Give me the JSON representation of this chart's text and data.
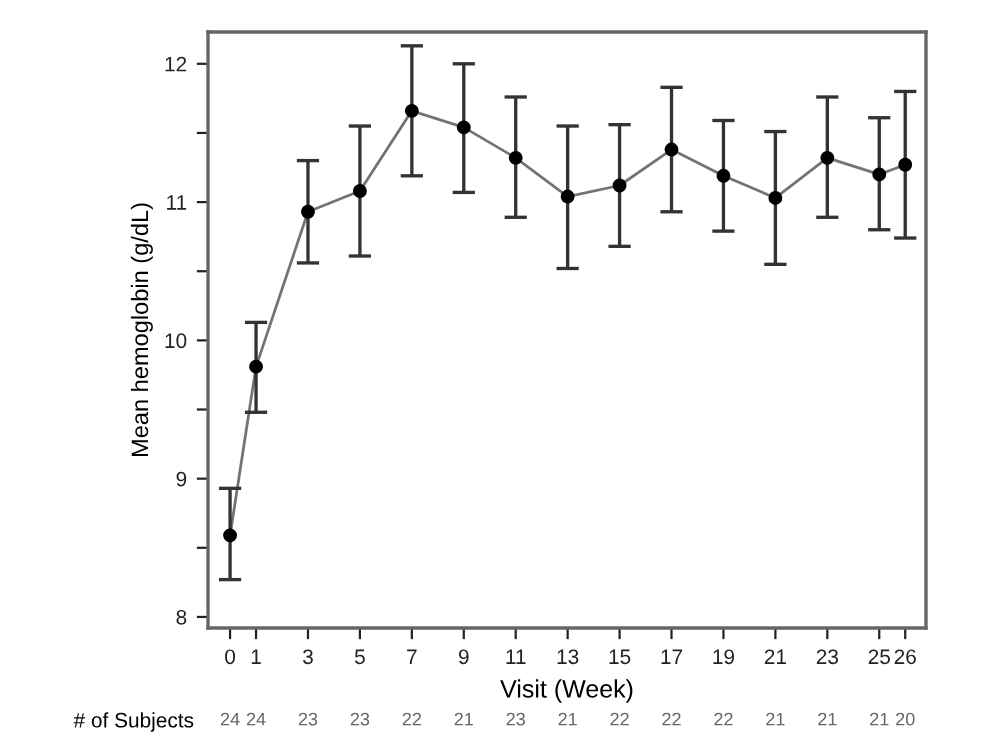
{
  "chart_data": {
    "type": "line",
    "xlabel": "Visit (Week)",
    "ylabel": "Mean hemoglobin (g/dL)",
    "x": [
      0,
      1,
      3,
      5,
      7,
      9,
      11,
      13,
      15,
      17,
      19,
      21,
      23,
      25,
      26
    ],
    "series": [
      {
        "color": "#000000",
        "values": [
          8.59,
          9.81,
          10.93,
          11.08,
          11.66,
          11.54,
          11.32,
          11.04,
          11.12,
          11.38,
          11.19,
          11.03,
          11.32,
          11.2,
          11.27
        ],
        "errors": [
          [
            8.27,
            8.93
          ],
          [
            9.48,
            10.13
          ],
          [
            10.56,
            11.3
          ],
          [
            10.61,
            11.55
          ],
          [
            11.19,
            12.13
          ],
          [
            11.07,
            12.0
          ],
          [
            10.89,
            11.76
          ],
          [
            10.52,
            11.55
          ],
          [
            10.68,
            11.56
          ],
          [
            10.93,
            11.83
          ],
          [
            10.79,
            11.59
          ],
          [
            10.55,
            11.51
          ],
          [
            10.89,
            11.76
          ],
          [
            10.8,
            11.61
          ],
          [
            10.74,
            11.8
          ]
        ]
      }
    ],
    "xlim": [
      -0.85,
      26.8
    ],
    "xticks": [
      0,
      1,
      3,
      5,
      7,
      9,
      11,
      13,
      15,
      17,
      19,
      21,
      23,
      25,
      26
    ],
    "ylim": [
      7.92,
      12.23
    ],
    "yticks": [
      8,
      {
        "value": 8.5,
        "label": null
      },
      9,
      {
        "value": 9.5,
        "label": null
      },
      10,
      {
        "value": 10.5,
        "label": null
      },
      11,
      {
        "value": 11.5,
        "label": null
      },
      12
    ],
    "grid": false,
    "legend": false,
    "marker": "circle",
    "line_style": "solid",
    "annotations": [
      "# of Subjects",
      "24",
      "24",
      "23",
      "23",
      "22",
      "21",
      "23",
      "21",
      "22",
      "22",
      "22",
      "21",
      "21",
      "21",
      "20"
    ]
  }
}
